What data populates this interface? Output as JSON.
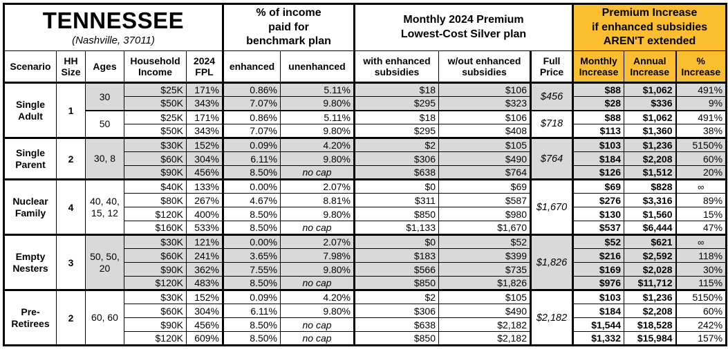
{
  "colors": {
    "gold": "#FBBE30",
    "row_shade": "#D9D9D9"
  },
  "header": {
    "title": "TENNESSEE",
    "subtitle": "(Nashville, 37011)",
    "benchmark_group": "% of income\npaid for\nbenchmark plan",
    "premium_group": "Monthly 2024 Premium\nLowest-Cost Silver plan",
    "increase_group": "Premium Increase\nif enhanced subsidies\nAREN'T extended",
    "columns": [
      "Scenario",
      "HH\nSize",
      "Ages",
      "Household\nIncome",
      "2024\nFPL",
      "enhanced",
      "unenhanced",
      "with enhanced\nsubsidies",
      "w/out enhanced\nsubsidies",
      "Full\nPrice",
      "Monthly\nIncrease",
      "Annual\nIncrease",
      "%\nIncrease"
    ]
  },
  "scenarios": [
    {
      "name": "Single\nAdult",
      "hh_size": "1",
      "age_groups": [
        {
          "ages": "30",
          "shaded": true,
          "full_price": "$456",
          "rows": [
            {
              "income": "$25K",
              "fpl": "171%",
              "enhanced": "0.86%",
              "unenhanced": "5.11%",
              "with_sub": "$18",
              "wout_sub": "$106",
              "monthly": "$88",
              "annual": "$1,062",
              "pct": "491%"
            },
            {
              "income": "$50K",
              "fpl": "343%",
              "enhanced": "7.07%",
              "unenhanced": "9.80%",
              "with_sub": "$295",
              "wout_sub": "$323",
              "monthly": "$28",
              "annual": "$336",
              "pct": "9%"
            }
          ]
        },
        {
          "ages": "50",
          "shaded": false,
          "full_price": "$718",
          "rows": [
            {
              "income": "$25K",
              "fpl": "171%",
              "enhanced": "0.86%",
              "unenhanced": "5.11%",
              "with_sub": "$18",
              "wout_sub": "$106",
              "monthly": "$88",
              "annual": "$1,062",
              "pct": "491%"
            },
            {
              "income": "$50K",
              "fpl": "343%",
              "enhanced": "7.07%",
              "unenhanced": "9.80%",
              "with_sub": "$295",
              "wout_sub": "$408",
              "monthly": "$113",
              "annual": "$1,360",
              "pct": "38%"
            }
          ]
        }
      ]
    },
    {
      "name": "Single\nParent",
      "hh_size": "2",
      "age_groups": [
        {
          "ages": "30, 8",
          "shaded": true,
          "full_price": "$764",
          "rows": [
            {
              "income": "$30K",
              "fpl": "152%",
              "enhanced": "0.09%",
              "unenhanced": "4.20%",
              "with_sub": "$2",
              "wout_sub": "$105",
              "monthly": "$103",
              "annual": "$1,236",
              "pct": "5150%"
            },
            {
              "income": "$60K",
              "fpl": "304%",
              "enhanced": "6.11%",
              "unenhanced": "9.80%",
              "with_sub": "$306",
              "wout_sub": "$490",
              "monthly": "$184",
              "annual": "$2,208",
              "pct": "60%"
            },
            {
              "income": "$90K",
              "fpl": "456%",
              "enhanced": "8.50%",
              "unenhanced": "no cap",
              "with_sub": "$638",
              "wout_sub": "$764",
              "monthly": "$126",
              "annual": "$1,512",
              "pct": "20%"
            }
          ]
        }
      ]
    },
    {
      "name": "Nuclear\nFamily",
      "hh_size": "4",
      "age_groups": [
        {
          "ages": "40, 40,\n15, 12",
          "shaded": false,
          "full_price": "$1,670",
          "rows": [
            {
              "income": "$40K",
              "fpl": "133%",
              "enhanced": "0.00%",
              "unenhanced": "2.07%",
              "with_sub": "$0",
              "wout_sub": "$69",
              "monthly": "$69",
              "annual": "$828",
              "pct": "∞"
            },
            {
              "income": "$80K",
              "fpl": "267%",
              "enhanced": "4.67%",
              "unenhanced": "8.81%",
              "with_sub": "$311",
              "wout_sub": "$587",
              "monthly": "$276",
              "annual": "$3,316",
              "pct": "89%"
            },
            {
              "income": "$120K",
              "fpl": "400%",
              "enhanced": "8.50%",
              "unenhanced": "9.80%",
              "with_sub": "$850",
              "wout_sub": "$980",
              "monthly": "$130",
              "annual": "$1,560",
              "pct": "15%"
            },
            {
              "income": "$160K",
              "fpl": "533%",
              "enhanced": "8.50%",
              "unenhanced": "no cap",
              "with_sub": "$1,133",
              "wout_sub": "$1,670",
              "monthly": "$537",
              "annual": "$6,444",
              "pct": "47%"
            }
          ]
        }
      ]
    },
    {
      "name": "Empty\nNesters",
      "hh_size": "3",
      "age_groups": [
        {
          "ages": "50, 50,\n20",
          "shaded": true,
          "full_price": "$1,826",
          "rows": [
            {
              "income": "$30K",
              "fpl": "121%",
              "enhanced": "0.00%",
              "unenhanced": "2.07%",
              "with_sub": "$0",
              "wout_sub": "$52",
              "monthly": "$52",
              "annual": "$621",
              "pct": "∞"
            },
            {
              "income": "$60K",
              "fpl": "241%",
              "enhanced": "3.65%",
              "unenhanced": "7.98%",
              "with_sub": "$183",
              "wout_sub": "$399",
              "monthly": "$216",
              "annual": "$2,592",
              "pct": "118%"
            },
            {
              "income": "$90K",
              "fpl": "362%",
              "enhanced": "7.55%",
              "unenhanced": "9.80%",
              "with_sub": "$566",
              "wout_sub": "$735",
              "monthly": "$169",
              "annual": "$2,028",
              "pct": "30%"
            },
            {
              "income": "$120K",
              "fpl": "483%",
              "enhanced": "8.50%",
              "unenhanced": "no cap",
              "with_sub": "$850",
              "wout_sub": "$1,826",
              "monthly": "$976",
              "annual": "$11,712",
              "pct": "115%"
            }
          ]
        }
      ]
    },
    {
      "name": "Pre-\nRetirees",
      "hh_size": "2",
      "age_groups": [
        {
          "ages": "60, 60",
          "shaded": false,
          "full_price": "$2,182",
          "rows": [
            {
              "income": "$30K",
              "fpl": "152%",
              "enhanced": "0.09%",
              "unenhanced": "4.20%",
              "with_sub": "$2",
              "wout_sub": "$105",
              "monthly": "$103",
              "annual": "$1,236",
              "pct": "5150%"
            },
            {
              "income": "$60K",
              "fpl": "304%",
              "enhanced": "6.11%",
              "unenhanced": "9.80%",
              "with_sub": "$306",
              "wout_sub": "$490",
              "monthly": "$184",
              "annual": "$2,208",
              "pct": "60%"
            },
            {
              "income": "$90K",
              "fpl": "456%",
              "enhanced": "8.50%",
              "unenhanced": "no cap",
              "with_sub": "$638",
              "wout_sub": "$2,182",
              "monthly": "$1,544",
              "annual": "$18,528",
              "pct": "242%"
            },
            {
              "income": "$120K",
              "fpl": "609%",
              "enhanced": "8.50%",
              "unenhanced": "no cap",
              "with_sub": "$850",
              "wout_sub": "$2,182",
              "monthly": "$1,332",
              "annual": "$15,984",
              "pct": "157%"
            }
          ]
        }
      ]
    }
  ]
}
